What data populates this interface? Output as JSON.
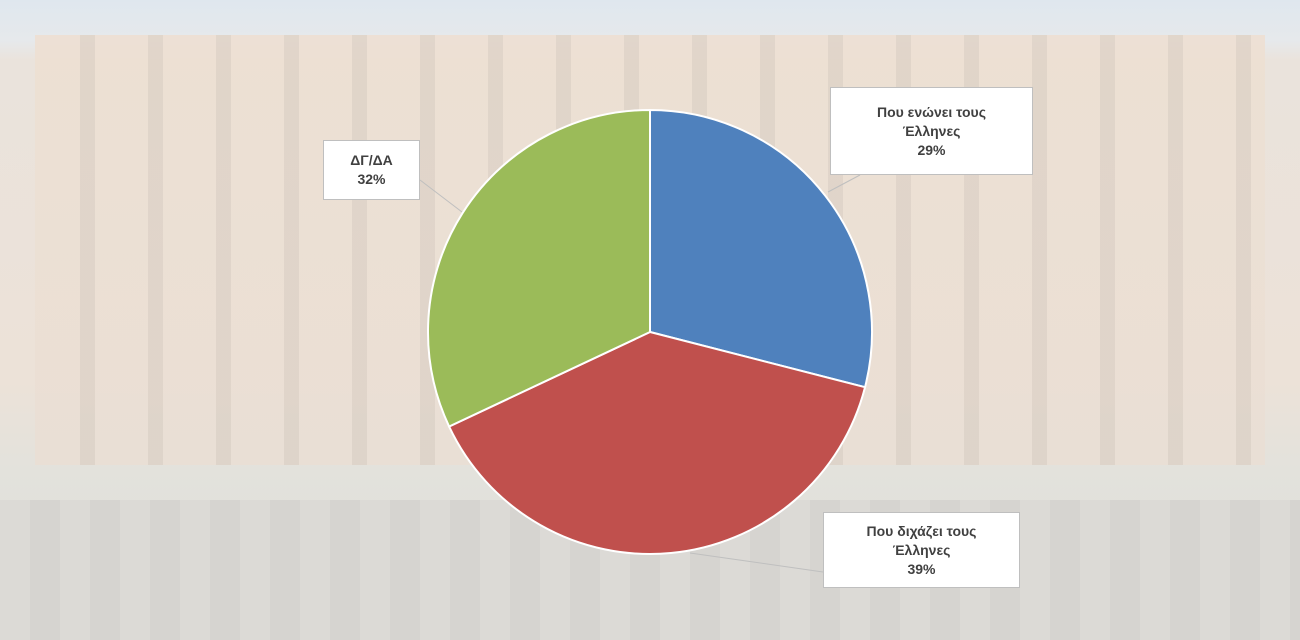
{
  "chart_data": {
    "type": "pie",
    "categories": [
      "Που ενώνει τους Έλληνες",
      "Που διχάζει τους Έλληνες",
      "ΔΓ/ΔΑ"
    ],
    "values": [
      29,
      39,
      32
    ],
    "value_labels": [
      "29%",
      "39%",
      "32%"
    ],
    "colors": [
      "#4f81bd",
      "#c0504d",
      "#9bbb59"
    ]
  }
}
